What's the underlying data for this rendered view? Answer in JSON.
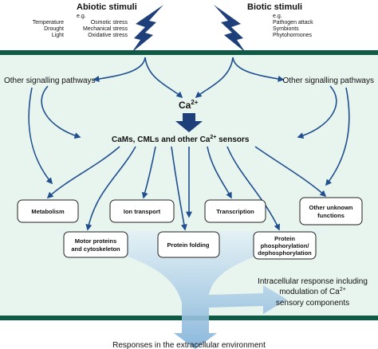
{
  "stimuli": {
    "abiotic": {
      "title": "Abiotic stimuli",
      "eg": "e.g.",
      "col1": [
        "Temperature",
        "Drought",
        "Light"
      ],
      "col2": [
        "Osmotic stress",
        "Mechanical stress",
        "Oxidative stress"
      ]
    },
    "biotic": {
      "title": "Biotic stimuli",
      "eg": "e.g.",
      "items": [
        "Pathogen attack",
        "Symbionts",
        "Phytohormones"
      ]
    }
  },
  "pathways": {
    "left": "Other signalling pathways",
    "right": "Other signalling pathways"
  },
  "calcium": {
    "ion": "Ca",
    "charge": "2+"
  },
  "sensors": {
    "text": "CaMs, CMLs and other Ca",
    "charge": "2+",
    "suffix": " sensors"
  },
  "functions": {
    "row1": [
      [
        "Metabolism"
      ],
      [
        "Ion transport"
      ],
      [
        "Transcription"
      ],
      [
        "Other unknown",
        "functions"
      ]
    ],
    "row2": [
      [
        "Motor proteins",
        "and cytoskeleton"
      ],
      [
        "Protein folding"
      ],
      [
        "Protein",
        "phosphorylation/",
        "dephosphorylation"
      ]
    ]
  },
  "intracellular": {
    "line1": "Intracellular response including",
    "line2": "modulation of Ca",
    "charge": "2+",
    "line3": "sensory components"
  },
  "extracellular": "Responses in the extracellular environment"
}
